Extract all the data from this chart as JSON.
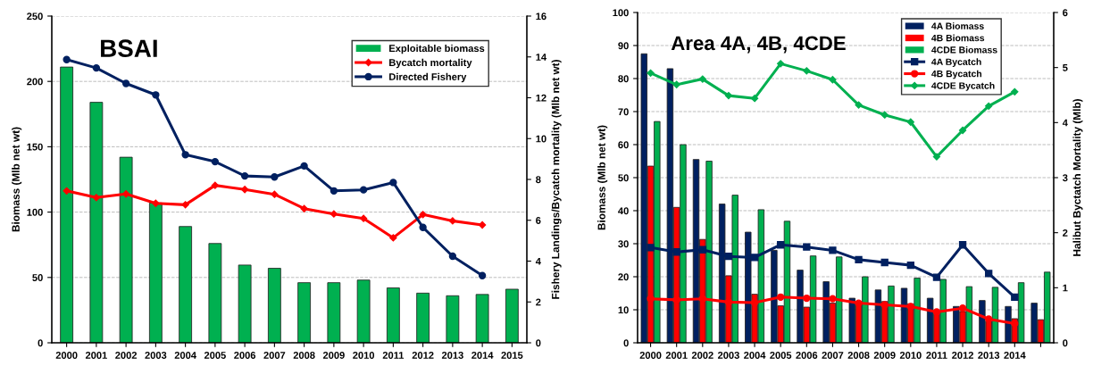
{
  "chart_data": [
    {
      "type": "bar",
      "title": "BSAI",
      "ylabel": "Biomass (Mlb net wt)",
      "y2label": "Fishery Landings/Bycatch mortality (Mlb net wt)",
      "categories": [
        "2000",
        "2001",
        "2002",
        "2003",
        "2004",
        "2005",
        "2006",
        "2007",
        "2008",
        "2009",
        "2010",
        "2011",
        "2012",
        "2013",
        "2014",
        "2015"
      ],
      "series": [
        {
          "name": "Exploitable biomass",
          "color": "#00b050",
          "values": [
            211,
            184,
            142,
            107,
            89,
            76,
            59.5,
            57,
            46,
            46,
            48,
            42,
            38,
            36,
            37,
            41
          ]
        },
        {
          "name": "Bycatch mortality",
          "type": "line",
          "axis": "y2",
          "color": "#ff0000",
          "marker": "diamond",
          "values": [
            7.44,
            7.11,
            7.29,
            6.83,
            6.76,
            7.71,
            7.51,
            7.27,
            6.57,
            6.31,
            6.09,
            5.14,
            6.28,
            5.97,
            5.77,
            null
          ]
        },
        {
          "name": "Directed Fishery",
          "type": "line",
          "axis": "y2",
          "color": "#002060",
          "marker": "circle",
          "values": [
            13.87,
            13.46,
            12.7,
            12.14,
            9.21,
            8.87,
            8.17,
            8.12,
            8.66,
            7.44,
            7.49,
            7.85,
            5.65,
            4.24,
            3.29,
            null
          ]
        }
      ],
      "ylim": [
        0,
        250
      ],
      "yticks": [
        0,
        50,
        100,
        150,
        200,
        250
      ],
      "y2lim": [
        0,
        16
      ],
      "y2ticks": [
        0,
        2,
        4,
        6,
        8,
        10,
        12,
        14,
        16
      ],
      "grid": "y",
      "legend": "top right"
    },
    {
      "type": "bar",
      "title": "Area 4A, 4B, 4CDE",
      "ylabel": "Biomass (Mlb net wt)",
      "y2label": "Halibut Byctatch Mortality (Mlb)",
      "categories": [
        "2000",
        "2001",
        "2002",
        "2003",
        "2004",
        "2005",
        "2006",
        "2007",
        "2008",
        "2009",
        "2010",
        "2011",
        "2012",
        "2013",
        "2014",
        null
      ],
      "series": [
        {
          "name": "4A Biomass",
          "color": "#002060",
          "values": [
            87.5,
            83,
            55.5,
            42,
            33.5,
            28,
            22,
            18.5,
            13.5,
            16,
            16.5,
            13.5,
            11,
            12.8,
            11,
            12
          ]
        },
        {
          "name": "4B Biomass",
          "color": "#ff0000",
          "values": [
            53.5,
            41,
            31.3,
            20.3,
            14.7,
            11.2,
            10.8,
            12,
            12,
            12.5,
            11.8,
            9.5,
            9.5,
            6.5,
            7.3,
            7
          ]
        },
        {
          "name": "4CDE Biomass",
          "color": "#00b050",
          "values": [
            67,
            60,
            55,
            44.7,
            40.3,
            36.8,
            26.3,
            26,
            20,
            17.2,
            19.6,
            19.2,
            17,
            16.8,
            18.2,
            21.4
          ]
        },
        {
          "name": "4A Bycatch",
          "type": "line",
          "axis": "y2",
          "color": "#002060",
          "marker": "square",
          "values": [
            1.73,
            1.65,
            1.69,
            1.57,
            1.55,
            1.78,
            1.74,
            1.68,
            1.51,
            1.46,
            1.41,
            1.19,
            1.78,
            1.26,
            0.83,
            null
          ]
        },
        {
          "name": "4B Bycatch",
          "type": "line",
          "axis": "y2",
          "color": "#ff0000",
          "marker": "circle",
          "values": [
            0.8,
            0.78,
            0.8,
            0.74,
            0.73,
            0.83,
            0.81,
            0.8,
            0.72,
            0.69,
            0.66,
            0.56,
            0.63,
            0.43,
            0.35,
            null
          ]
        },
        {
          "name": "4CDE Bycatch",
          "type": "line",
          "axis": "y2",
          "color": "#00b050",
          "marker": "diamond",
          "values": [
            4.9,
            4.69,
            4.79,
            4.49,
            4.44,
            5.07,
            4.94,
            4.78,
            4.32,
            4.14,
            4.01,
            3.38,
            3.86,
            4.3,
            4.56,
            null
          ]
        }
      ],
      "ylim": [
        0,
        100
      ],
      "yticks": [
        0,
        10,
        20,
        30,
        40,
        50,
        60,
        70,
        80,
        90,
        100
      ],
      "y2lim": [
        0,
        6
      ],
      "y2ticks": [
        0,
        1,
        2,
        3,
        4,
        5,
        6
      ],
      "grid": "y",
      "legend": "top right"
    }
  ]
}
